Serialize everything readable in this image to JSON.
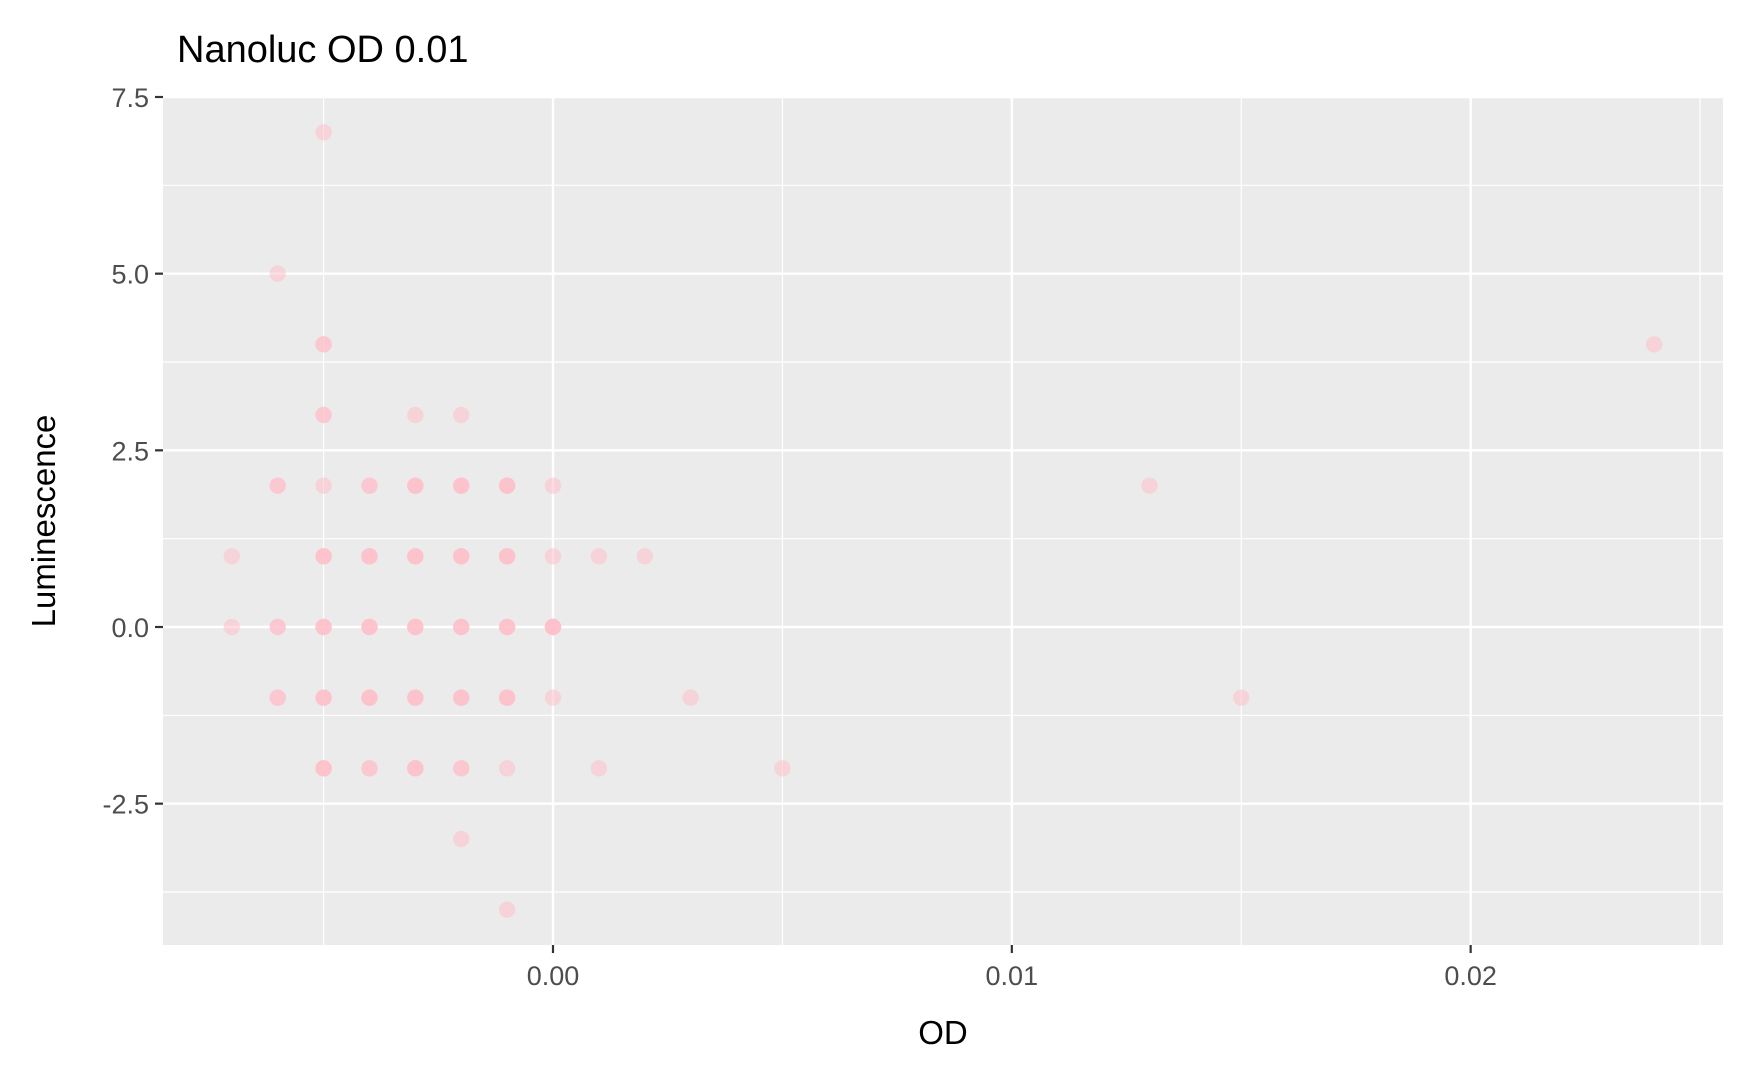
{
  "chart_data": {
    "type": "scatter",
    "title": "Nanoluc OD 0.01",
    "xlabel": "OD",
    "ylabel": "Luminescence",
    "xlim": [
      -0.0085,
      0.0255
    ],
    "ylim": [
      -4.5,
      7.5
    ],
    "x_ticks": [
      0.0,
      0.01,
      0.02
    ],
    "x_tick_labels": [
      "0.00",
      "0.01",
      "0.02"
    ],
    "x_minor_ticks": [
      -0.005,
      0.005,
      0.015,
      0.025
    ],
    "y_ticks": [
      -2.5,
      0.0,
      2.5,
      5.0,
      7.5
    ],
    "y_tick_labels": [
      "-2.5",
      "0.0",
      "2.5",
      "5.0",
      "7.5"
    ],
    "y_minor_ticks": [
      -3.75,
      -1.25,
      1.25,
      3.75,
      6.25
    ],
    "grid": true,
    "legend": "none",
    "colors": {
      "point": "#ffc0cb",
      "panel_background": "#ebebeb",
      "grid_line": "#ffffff",
      "tick_label": "#4d4d4d",
      "tick_mark": "#333333"
    },
    "series": [
      {
        "x": [
          -0.005,
          -0.006,
          -0.005,
          -0.005,
          -0.003,
          -0.002,
          -0.006,
          -0.005,
          -0.004,
          -0.003,
          -0.002,
          -0.001,
          0.0,
          -0.007,
          -0.005,
          -0.004,
          -0.003,
          -0.002,
          -0.001,
          0.0,
          0.001,
          0.002,
          -0.007,
          -0.006,
          -0.005,
          -0.004,
          -0.003,
          -0.002,
          -0.001,
          0.0,
          -0.006,
          -0.005,
          -0.004,
          -0.003,
          -0.002,
          -0.001,
          0.0,
          0.003,
          -0.005,
          -0.004,
          -0.003,
          -0.002,
          -0.001,
          0.001,
          0.005,
          -0.002,
          -0.001,
          0.013,
          0.015,
          0.024
        ],
        "y": [
          7,
          5,
          4,
          3,
          3,
          3,
          2,
          2,
          2,
          2,
          2,
          2,
          2,
          1,
          1,
          1,
          1,
          1,
          1,
          1,
          1,
          1,
          0,
          0,
          0,
          0,
          0,
          0,
          0,
          0,
          -1,
          -1,
          -1,
          -1,
          -1,
          -1,
          -1,
          -1,
          -2,
          -2,
          -2,
          -2,
          -2,
          -2,
          -2,
          -3,
          -4,
          2,
          -1,
          4
        ],
        "count": [
          1,
          1,
          2,
          2,
          1,
          1,
          2,
          1,
          2,
          3,
          3,
          3,
          1,
          1,
          3,
          3,
          3,
          3,
          3,
          1,
          1,
          1,
          1,
          2,
          3,
          3,
          3,
          3,
          3,
          4,
          2,
          3,
          3,
          3,
          3,
          3,
          1,
          1,
          3,
          2,
          3,
          2,
          1,
          1,
          1,
          1,
          1,
          1,
          1,
          1
        ]
      }
    ]
  }
}
